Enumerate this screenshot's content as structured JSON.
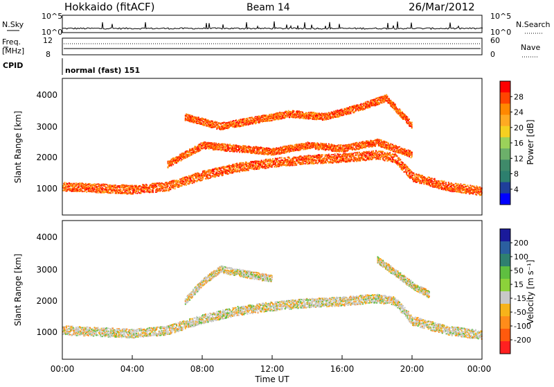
{
  "header": {
    "station": "Hokkaido (fitACF)",
    "beam": "Beam 14",
    "date": "26/Mar/2012"
  },
  "strips": {
    "nsky_label": "N.Sky",
    "nsearch_label": "N.Search",
    "nsky_ticks": [
      "10^5",
      "10^0"
    ],
    "freq_label_1": "Freq.",
    "freq_label_2": "[MHz]",
    "freq_ticks": [
      "12",
      "8"
    ],
    "nave_label": "Nave",
    "nave_ticks": [
      "60",
      "0"
    ],
    "cpid_label": "CPID",
    "cpid_value": "normal (fast) 151"
  },
  "colorbars": {
    "power": {
      "label": "Power [dB]",
      "ticks": [
        "28",
        "24",
        "20",
        "16",
        "12",
        "8",
        "4"
      ],
      "colors": [
        "#ff0000",
        "#ff4400",
        "#ff8800",
        "#ffaa22",
        "#f5d020",
        "#9bd25a",
        "#6cb06a",
        "#3f8a6a",
        "#2d7f6e",
        "#1f3f9a",
        "#0000ff"
      ]
    },
    "velocity": {
      "label": "Velocity [m s⁻¹]",
      "ticks": [
        "200",
        "100",
        "50",
        "15",
        "-15",
        "-50",
        "-100",
        "-200"
      ],
      "colors": [
        "#1a1a9a",
        "#2b5fa0",
        "#2f8070",
        "#5fbf40",
        "#8cd23a",
        "#c8c8c8",
        "#f7b31a",
        "#ff8c1a",
        "#ff5a0d",
        "#ff2020"
      ]
    }
  },
  "axes": {
    "ylabel": "Slant Range [km]",
    "xlabel": "Time UT",
    "x_ticks": [
      "00:00",
      "04:00",
      "08:00",
      "12:00",
      "16:00",
      "20:00",
      "00:00"
    ],
    "y_ticks": [
      "4000",
      "3000",
      "2000",
      "1000"
    ]
  },
  "chart_data": [
    {
      "type": "heatmap",
      "title": "",
      "quantity": "Power [dB]",
      "xlabel": "Time UT",
      "ylabel": "Slant Range [km]",
      "x_range_hours": [
        0,
        24
      ],
      "y_range_km": [
        180,
        4500
      ],
      "colorbar_range": [
        0,
        30
      ],
      "series": [
        {
          "name": "",
          "x": [
            0,
            2,
            4,
            6,
            8,
            10,
            12,
            14,
            16,
            18,
            19,
            20,
            22,
            24
          ],
          "y": [
            1100,
            1050,
            1000,
            1100,
            1450,
            1700,
            1850,
            1950,
            2000,
            2100,
            2000,
            1400,
            1100,
            950
          ]
        },
        {
          "name": "",
          "x": [
            6,
            8,
            10,
            12,
            14,
            16,
            18,
            20
          ],
          "y": [
            1800,
            2400,
            2300,
            2200,
            2400,
            2300,
            2500,
            2100
          ]
        },
        {
          "name": "",
          "x": [
            7,
            9,
            11,
            13,
            15,
            17,
            18.5,
            20
          ],
          "y": [
            3300,
            3000,
            3200,
            3400,
            3300,
            3600,
            3900,
            3000
          ]
        }
      ]
    },
    {
      "type": "heatmap",
      "title": "",
      "quantity": "Velocity [m s⁻¹]",
      "xlabel": "Time UT",
      "ylabel": "Slant Range [km]",
      "x_range_hours": [
        0,
        24
      ],
      "y_range_km": [
        180,
        4500
      ],
      "colorbar_range": [
        -250,
        250
      ],
      "series": [
        {
          "name": "",
          "x": [
            0,
            2,
            4,
            6,
            8,
            10,
            12,
            14,
            16,
            18,
            19,
            20,
            22,
            24
          ],
          "y": [
            1100,
            1050,
            1000,
            1100,
            1450,
            1700,
            1850,
            1950,
            2000,
            2100,
            2000,
            1400,
            1100,
            950
          ]
        },
        {
          "name": "",
          "x": [
            7,
            8,
            9,
            10,
            12
          ],
          "y": [
            2000,
            2600,
            3000,
            2900,
            2700
          ]
        },
        {
          "name": "",
          "x": [
            18,
            19,
            20,
            21
          ],
          "y": [
            3300,
            2900,
            2500,
            2200
          ]
        }
      ]
    }
  ]
}
